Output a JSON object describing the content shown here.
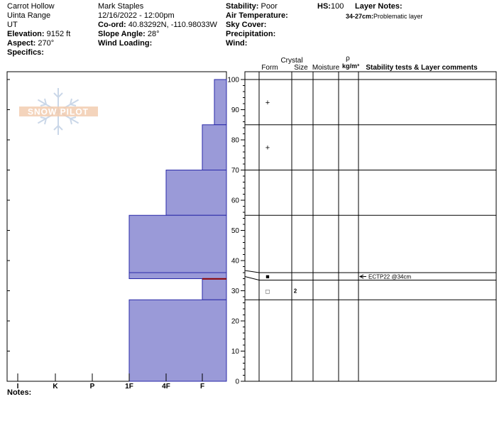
{
  "header": {
    "location": "Carrot Hollow",
    "range": "Uinta Range",
    "state": "UT",
    "elevation_label": "Elevation:",
    "elevation": "9152 ft",
    "aspect_label": "Aspect:",
    "aspect": "270°",
    "specifics_label": "Specifics:",
    "observer": "Mark Staples",
    "datetime": "12/16/2022 - 12:00pm",
    "coord_label": "Co-ord:",
    "coord": "40.83292N, -110.98033W",
    "slope_label": "Slope Angle:",
    "slope": "28°",
    "wind_loading_label": "Wind Loading:",
    "stability_label": "Stability:",
    "stability": "Poor",
    "air_temp_label": "Air Temperature:",
    "sky_cover_label": "Sky Cover:",
    "precip_label": "Precipitation:",
    "wind_label": "Wind:",
    "hs_label": "HS:",
    "hs": "100",
    "layer_notes_label": "Layer Notes:",
    "layer_note_range": "34-27cm:",
    "layer_note_text": "Problematic layer"
  },
  "logo_text": "SNOW PILOT",
  "notes_label": "Notes:",
  "columns": {
    "crystal": "Crystal",
    "form": "Form",
    "size": "Size",
    "moisture": "Moisture",
    "rho": "ρ",
    "density_unit": "kg/m³",
    "stability_comments": "Stability tests & Layer comments"
  },
  "colors": {
    "hardness_fill": "#9a9ad8",
    "hardness_stroke": "#2a2aa8",
    "test_line": "#8b0000"
  },
  "chart_data": {
    "type": "bar",
    "title": "",
    "xlabel": "",
    "ylabel": "",
    "ylim": [
      0,
      100
    ],
    "y_ticks": [
      0,
      10,
      20,
      30,
      40,
      50,
      60,
      70,
      80,
      90,
      100
    ],
    "hardness_scale": [
      "I",
      "K",
      "P",
      "1F",
      "4F",
      "F"
    ],
    "layers": [
      {
        "top": 100,
        "bottom": 85,
        "hardness": "F-"
      },
      {
        "top": 85,
        "bottom": 70,
        "hardness": "F"
      },
      {
        "top": 70,
        "bottom": 55,
        "hardness": "4F"
      },
      {
        "top": 55,
        "bottom": 36,
        "hardness": "1F"
      },
      {
        "top": 36,
        "bottom": 34,
        "hardness": "1F"
      },
      {
        "top": 34,
        "bottom": 27,
        "hardness": "F"
      },
      {
        "top": 27,
        "bottom": 0,
        "hardness": "1F"
      }
    ],
    "crystals": [
      {
        "depth": 92.5,
        "form": "+",
        "size": ""
      },
      {
        "depth": 77.5,
        "form": "+",
        "size": ""
      },
      {
        "depth": 35,
        "form": "■",
        "size": ""
      },
      {
        "depth": 30,
        "form": "□",
        "size": "2"
      }
    ],
    "stability_tests": [
      {
        "depth": 34,
        "label": "ECTP22 @34cm"
      }
    ]
  }
}
